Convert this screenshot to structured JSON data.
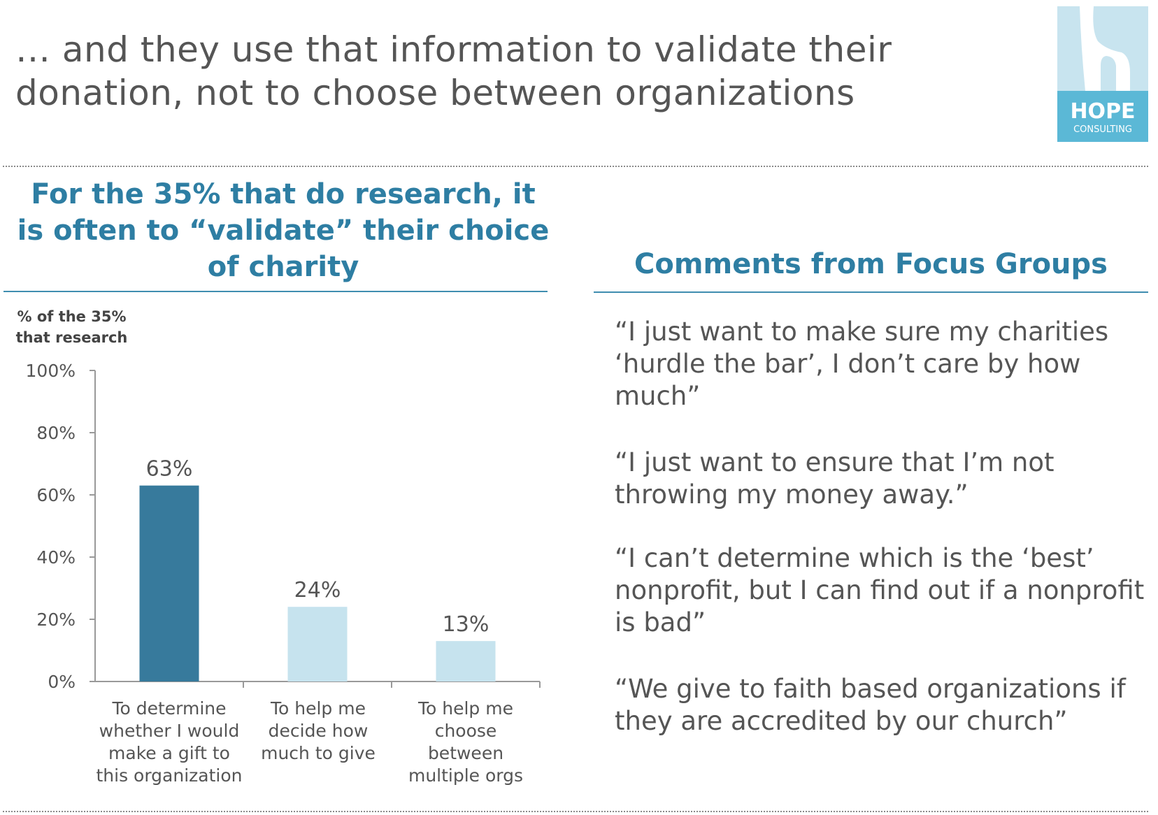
{
  "title": "… and they use that information to validate their donation, not to choose between organizations",
  "logo": {
    "text": "HOPE",
    "subtext": "CONSULTING",
    "colors": {
      "light": "#c8e4ef",
      "dark": "#5bb8d6"
    }
  },
  "left_heading": "For the 35% that do research, it is often to “validate” their choice of charity",
  "right_heading": "Comments from Focus Groups",
  "quotes": [
    "“I just want to make sure my charities ‘hurdle the bar’, I don’t care by how much”",
    "“I just want to ensure that I’m not throwing my money away.”",
    "“I can’t determine which is the ‘best’ nonprofit, but I can find out if a nonprofit is bad”",
    "“We give to faith based organizations if they are accredited by our church”"
  ],
  "chart_data": {
    "type": "bar",
    "ylabel": "% of the 35% that research",
    "categories": [
      "To determine whether I would make a gift to this organization",
      "To help me decide how much to give",
      "To help me choose between multiple orgs"
    ],
    "values": [
      63,
      24,
      13
    ],
    "data_labels": [
      "63%",
      "24%",
      "13%"
    ],
    "ylim": [
      0,
      100
    ],
    "yticks": [
      "0%",
      "20%",
      "40%",
      "60%",
      "80%",
      "100%"
    ],
    "grid": false,
    "bar_colors": [
      "#377a9c",
      "#c6e3ee",
      "#c6e3ee"
    ]
  }
}
